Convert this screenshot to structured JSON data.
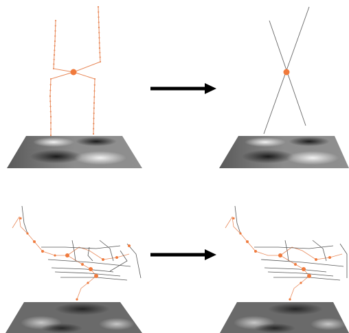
{
  "figure": {
    "panels": [
      {
        "id": "top-left",
        "content": "vertical-lines-with-nodes-over-saddle-surface"
      },
      {
        "id": "top-right",
        "content": "crossing-lines-over-saddle-surface"
      },
      {
        "id": "bottom-left",
        "content": "branching-network-with-nodes-over-noise-surface"
      },
      {
        "id": "bottom-right",
        "content": "branching-network-simplified-over-noise-surface"
      }
    ],
    "arrows": [
      "right-arrow-top",
      "right-arrow-bottom"
    ],
    "colors": {
      "node": "#f07a3c",
      "line_accent": "#e8895a",
      "line_dark": "#555555",
      "arrow": "#000000",
      "background": "#ffffff"
    }
  }
}
